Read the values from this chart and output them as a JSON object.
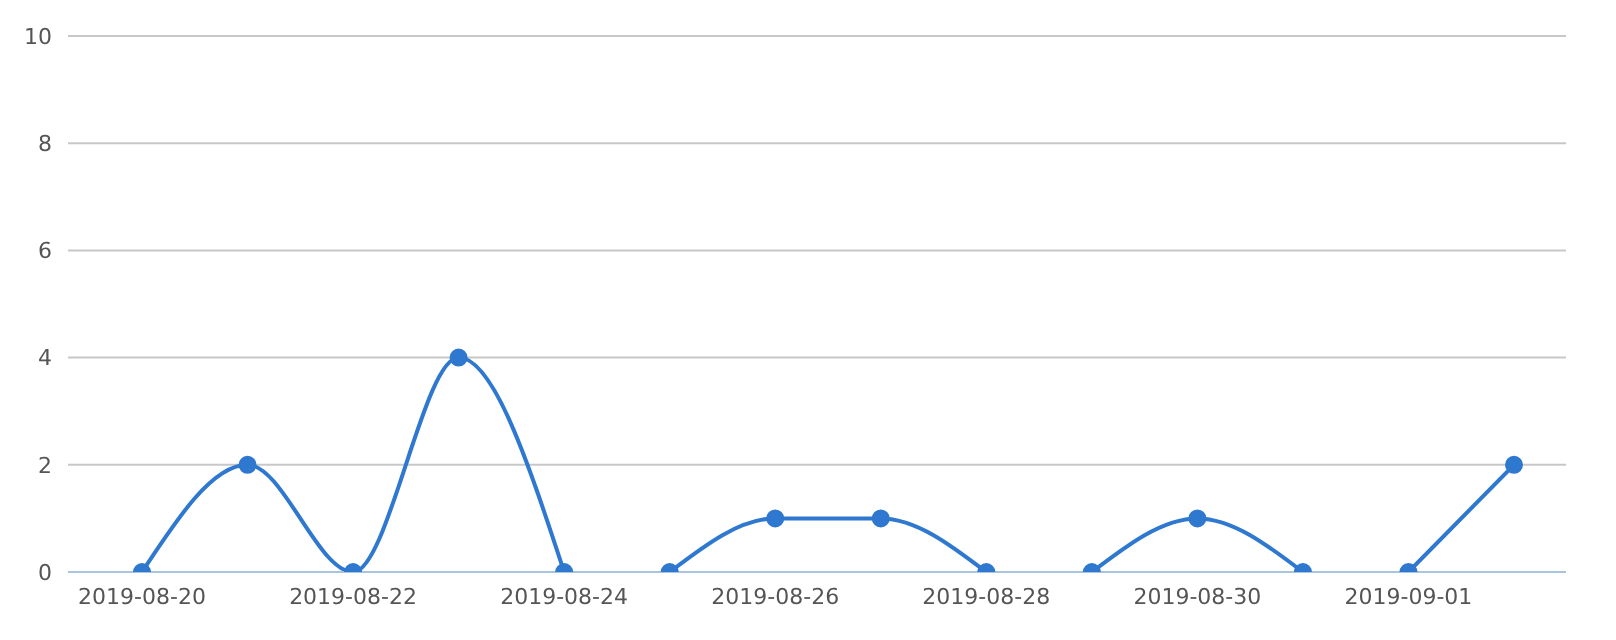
{
  "chart_data": {
    "type": "line",
    "categories": [
      "2019-08-20",
      null,
      "2019-08-22",
      null,
      "2019-08-24",
      null,
      "2019-08-26",
      null,
      "2019-08-28",
      null,
      "2019-08-30",
      null,
      "2019-09-01",
      null
    ],
    "series": [
      {
        "color": "#2f78d0",
        "values": [
          0,
          2,
          0,
          4,
          0,
          null,
          null,
          null,
          null,
          null,
          null,
          null,
          null,
          null
        ]
      },
      {
        "color": "#2f78d0",
        "values": [
          null,
          null,
          null,
          null,
          null,
          0,
          1,
          1,
          0,
          null,
          null,
          null,
          null,
          null
        ]
      },
      {
        "color": "#2f78d0",
        "values": [
          null,
          null,
          null,
          null,
          null,
          null,
          null,
          null,
          null,
          0,
          1,
          0,
          null,
          null
        ]
      },
      {
        "color": "#2f78d0",
        "values": [
          null,
          null,
          null,
          null,
          null,
          null,
          null,
          null,
          null,
          null,
          null,
          null,
          0,
          2
        ]
      }
    ],
    "ylim": [
      0,
      10
    ],
    "yticks": [
      0,
      2,
      4,
      6,
      8,
      10
    ],
    "grid": "y",
    "marker": "circle",
    "line_style": "solid"
  }
}
